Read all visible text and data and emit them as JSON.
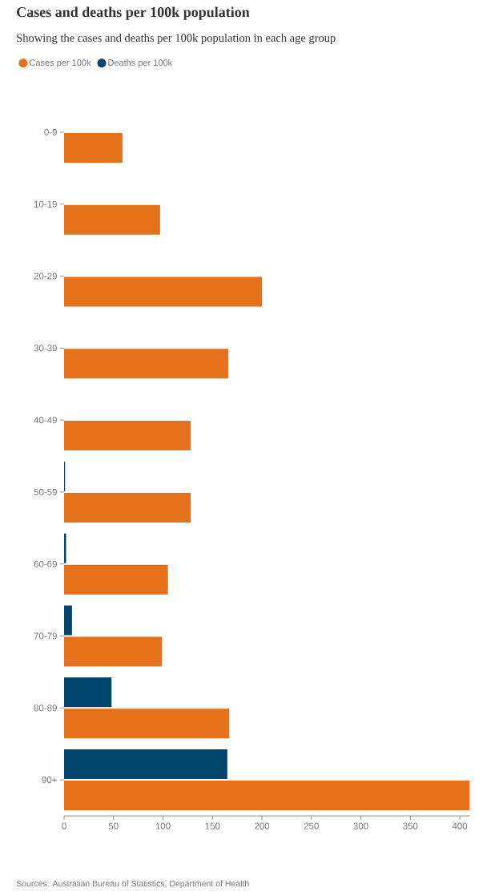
{
  "chart_data": {
    "type": "bar",
    "orientation": "horizontal",
    "title": "Cases and deaths per 100k population",
    "subtitle": "Showing the cases and deaths per 100k population in each age group",
    "categories": [
      "0-9",
      "10-19",
      "20-29",
      "30-39",
      "40-49",
      "50-59",
      "60-69",
      "70-79",
      "80-89",
      "90+"
    ],
    "series": [
      {
        "name": "Cases per 100k",
        "color": "#e6711b",
        "values": [
          59,
          97,
          200,
          166,
          128,
          128,
          105,
          99,
          167,
          410
        ]
      },
      {
        "name": "Deaths per 100k",
        "color": "#00456e",
        "values": [
          0,
          0,
          0,
          0,
          0,
          1,
          2,
          8,
          48,
          165
        ]
      }
    ],
    "xlim": [
      0,
      410
    ],
    "xticks": [
      0,
      50,
      100,
      150,
      200,
      250,
      300,
      350,
      400
    ],
    "grid": false,
    "legend": "top left",
    "annotations": [
      "Sources: Australian Bureau of Statistics, Department of Health"
    ]
  }
}
